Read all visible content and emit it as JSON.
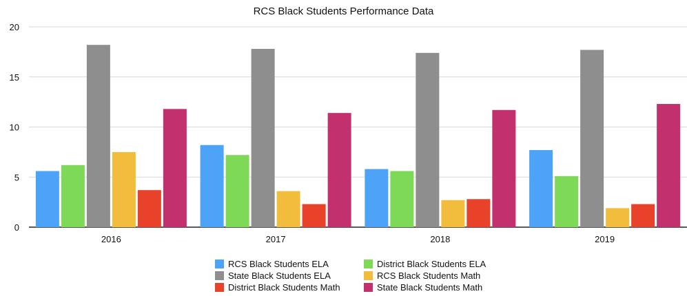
{
  "chart_data": {
    "type": "bar",
    "title": "RCS Black Students Performance Data",
    "xlabel": "",
    "ylabel": "",
    "categories": [
      "2016",
      "2017",
      "2018",
      "2019"
    ],
    "ylim": [
      0,
      20
    ],
    "yticks": [
      0,
      5,
      10,
      15,
      20
    ],
    "grid": true,
    "legend_position": "bottom",
    "series": [
      {
        "name": "RCS Black Students ELA",
        "color": "#4DA3F7",
        "values": [
          5.6,
          8.2,
          5.8,
          7.7
        ]
      },
      {
        "name": "District Black Students ELA",
        "color": "#7ED957",
        "values": [
          6.2,
          7.2,
          5.6,
          5.1
        ]
      },
      {
        "name": "State Black Students ELA",
        "color": "#8E8E8E",
        "values": [
          18.2,
          17.8,
          17.4,
          17.7
        ]
      },
      {
        "name": "RCS Black Students Math",
        "color": "#F2BC3C",
        "values": [
          7.5,
          3.6,
          2.7,
          1.9
        ]
      },
      {
        "name": "District Black Students Math",
        "color": "#E8422A",
        "values": [
          3.7,
          2.3,
          2.8,
          2.3
        ]
      },
      {
        "name": "State Black Students Math",
        "color": "#C2306E",
        "values": [
          11.8,
          11.4,
          11.7,
          12.3
        ]
      }
    ]
  }
}
